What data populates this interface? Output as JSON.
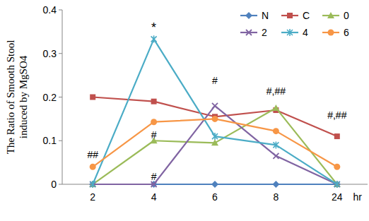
{
  "chart_data": {
    "type": "line",
    "y_label": "The Ratio of Smooth Stool induced by MgSO4",
    "x_label": "hr",
    "categories": [
      "2",
      "4",
      "6",
      "8",
      "24"
    ],
    "series": [
      {
        "name": "N",
        "color": "#4f81bd",
        "marker": "diamond",
        "values": [
          0,
          0,
          0,
          0,
          0
        ]
      },
      {
        "name": "C",
        "color": "#c0504d",
        "marker": "square",
        "values": [
          0.2,
          0.19,
          0.155,
          0.17,
          0.11
        ]
      },
      {
        "name": "0",
        "color": "#9bbb59",
        "marker": "triangle",
        "values": [
          0,
          0.1,
          0.095,
          0.175,
          0
        ]
      },
      {
        "name": "2",
        "color": "#8064a2",
        "marker": "x",
        "values": [
          0,
          0,
          0.18,
          0.065,
          0
        ]
      },
      {
        "name": "4",
        "color": "#4bacc6",
        "marker": "star",
        "values": [
          0,
          0.333,
          0.11,
          0.09,
          0
        ]
      },
      {
        "name": "6",
        "color": "#f79646",
        "marker": "circle",
        "values": [
          0.04,
          0.143,
          0.15,
          0.122,
          0.04
        ]
      }
    ],
    "annotations": [
      {
        "text": "*",
        "x": "4",
        "y": 0.36
      },
      {
        "text": "##",
        "x": "2",
        "y": 0.07
      },
      {
        "text": "#",
        "x": "4",
        "y": 0.115
      },
      {
        "text": "#",
        "x": "4",
        "y": 0.02
      },
      {
        "text": "#",
        "x": "6",
        "y": 0.24
      },
      {
        "text": "#,##",
        "x": "8",
        "y": 0.215
      },
      {
        "text": "#,##",
        "x": "24",
        "y": 0.16
      }
    ],
    "ylim": [
      0,
      0.4
    ],
    "yticks": [
      0,
      0.1,
      0.2,
      0.3,
      0.4
    ],
    "grid": false,
    "legend": "upper right"
  }
}
